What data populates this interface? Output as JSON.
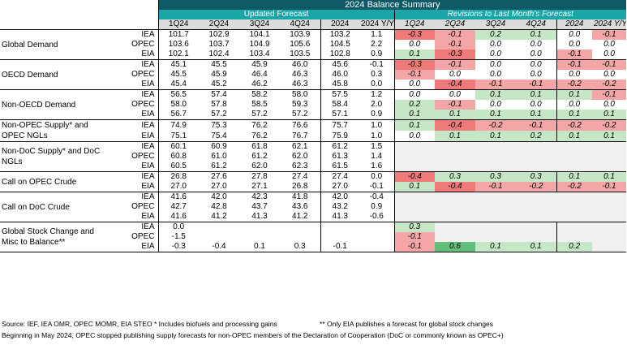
{
  "title": "2024 Balance Summary",
  "sections": {
    "updated": "Updated Forecast",
    "revisions": "Revisions to Last Month's Forecast"
  },
  "columns": [
    "1Q24",
    "2Q24",
    "3Q24",
    "4Q24",
    "2024",
    "2024 Y/Y"
  ],
  "colors": {
    "positive": "#c6e7c6",
    "positive_strong": "#63be7b",
    "negative": "#f4a6a6",
    "negative_strong": "#f07a7a",
    "header_dark": "#0e5965",
    "header_teal": "#1aa6a6",
    "blank": "#f0f0f0"
  },
  "groups": [
    {
      "label": "Global Demand",
      "rows": [
        {
          "src": "IEA",
          "vals": [
            "101.7",
            "102.9",
            "104.1",
            "103.9",
            "103.2",
            "1.1"
          ],
          "rev": [
            "-0.3",
            "-0.1",
            "0.2",
            "0.1",
            "0.0",
            "-0.1"
          ]
        },
        {
          "src": "OPEC",
          "vals": [
            "103.6",
            "103.7",
            "104.9",
            "105.6",
            "104.5",
            "2.2"
          ],
          "rev": [
            "0.0",
            "-0.1",
            "0.0",
            "0.0",
            "0.0",
            "0.0"
          ]
        },
        {
          "src": "EIA",
          "vals": [
            "102.1",
            "102.4",
            "103.4",
            "103.5",
            "102.8",
            "0.9"
          ],
          "rev": [
            "0.1",
            "-0.3",
            "0.0",
            "0.0",
            "-0.1",
            "0.0"
          ]
        }
      ]
    },
    {
      "label": "OECD Demand",
      "rows": [
        {
          "src": "IEA",
          "vals": [
            "45.1",
            "45.5",
            "45.9",
            "46.0",
            "45.6",
            "-0.1"
          ],
          "rev": [
            "-0.3",
            "-0.1",
            "0.0",
            "0.0",
            "-0.1",
            "-0.1"
          ]
        },
        {
          "src": "OPEC",
          "vals": [
            "45.5",
            "45.9",
            "46.4",
            "46.3",
            "46.0",
            "0.3"
          ],
          "rev": [
            "-0.1",
            "0.0",
            "0.0",
            "0.0",
            "0.0",
            "0.0"
          ]
        },
        {
          "src": "EIA",
          "vals": [
            "45.4",
            "45.2",
            "46.2",
            "46.3",
            "45.8",
            "0.0"
          ],
          "rev": [
            "0.0",
            "-0.4",
            "-0.1",
            "-0.1",
            "-0.2",
            "-0.2"
          ]
        }
      ]
    },
    {
      "label": "Non-OECD Demand",
      "rows": [
        {
          "src": "IEA",
          "vals": [
            "56.5",
            "57.4",
            "58.2",
            "58.0",
            "57.5",
            "1.2"
          ],
          "rev": [
            "0.0",
            "0.0",
            "0.1",
            "0.1",
            "0.1",
            "-0.1"
          ]
        },
        {
          "src": "OPEC",
          "vals": [
            "58.0",
            "57.8",
            "58.5",
            "59.3",
            "58.4",
            "2.0"
          ],
          "rev": [
            "0.2",
            "-0.1",
            "0.0",
            "0.0",
            "0.0",
            "0.0"
          ]
        },
        {
          "src": "EIA",
          "vals": [
            "56.7",
            "57.2",
            "57.2",
            "57.2",
            "57.1",
            "0.9"
          ],
          "rev": [
            "0.1",
            "0.1",
            "0.1",
            "0.1",
            "0.1",
            "0.1"
          ]
        }
      ]
    },
    {
      "label": "Non-OPEC Supply* and OPEC NGLs",
      "rows": [
        {
          "src": "IEA",
          "vals": [
            "74.9",
            "75.3",
            "76.2",
            "76.6",
            "75.7",
            "1.0"
          ],
          "rev": [
            "0.1",
            "-0.4",
            "-0.2",
            "-0.1",
            "-0.2",
            "-0.2"
          ]
        },
        {
          "src": "EIA",
          "vals": [
            "75.1",
            "75.4",
            "76.2",
            "76.7",
            "75.9",
            "1.0"
          ],
          "rev": [
            "0.0",
            "0.1",
            "0.1",
            "0.2",
            "0.1",
            "0.1"
          ]
        }
      ]
    },
    {
      "label": "Non-DoC Supply* and DoC NGLs",
      "rows": [
        {
          "src": "IEA",
          "vals": [
            "60.1",
            "60.9",
            "61.8",
            "62.1",
            "61.2",
            "1.5"
          ],
          "rev": null
        },
        {
          "src": "OPEC",
          "vals": [
            "60.8",
            "61.0",
            "61.2",
            "62.0",
            "61.3",
            "1.4"
          ],
          "rev": null
        },
        {
          "src": "EIA",
          "vals": [
            "60.5",
            "61.2",
            "62.0",
            "62.3",
            "61.5",
            "1.6"
          ],
          "rev": null
        }
      ]
    },
    {
      "label": "Call on OPEC Crude",
      "rows": [
        {
          "src": "IEA",
          "vals": [
            "26.8",
            "27.6",
            "27.8",
            "27.4",
            "27.4",
            "0.0"
          ],
          "rev": [
            "-0.4",
            "0.3",
            "0.3",
            "0.3",
            "0.1",
            "0.1"
          ]
        },
        {
          "src": "EIA",
          "vals": [
            "27.0",
            "27.0",
            "27.1",
            "26.8",
            "27.0",
            "-0.1"
          ],
          "rev": [
            "0.1",
            "-0.4",
            "-0.1",
            "-0.2",
            "-0.2",
            "-0.1"
          ]
        }
      ]
    },
    {
      "label": "Call on DoC Crude",
      "rows": [
        {
          "src": "IEA",
          "vals": [
            "41.6",
            "42.0",
            "42.3",
            "41.8",
            "42.0",
            "-0.4"
          ],
          "rev": null
        },
        {
          "src": "OPEC",
          "vals": [
            "42.7",
            "42.8",
            "43.7",
            "43.6",
            "43.2",
            "0.9"
          ],
          "rev": null
        },
        {
          "src": "EIA",
          "vals": [
            "41.6",
            "41.2",
            "41.3",
            "41.2",
            "41.3",
            "-0.6"
          ],
          "rev": null
        }
      ]
    },
    {
      "label": "Global Stock Change and Misc to Balance**",
      "rows": [
        {
          "src": "IEA",
          "vals": [
            "0.0",
            "",
            "",
            "",
            "",
            ""
          ],
          "rev": [
            "0.3",
            "",
            "",
            "",
            "",
            ""
          ]
        },
        {
          "src": "OPEC",
          "vals": [
            "-1.5",
            "",
            "",
            "",
            "",
            ""
          ],
          "rev": [
            "-0.1",
            "",
            "",
            "",
            "",
            ""
          ]
        },
        {
          "src": "EIA",
          "vals": [
            "-0.3",
            "-0.4",
            "0.1",
            "0.3",
            "-0.1",
            ""
          ],
          "rev": [
            "-0.1",
            "0.6",
            "0.1",
            "0.1",
            "0.2",
            ""
          ]
        }
      ]
    }
  ],
  "footnotes": {
    "sources": "Source: IEF, IEA OMR, OPEC MOMR, EIA STEO   * Includes biofuels and processing gains",
    "eia_only": "** Only EIA publishes a forecast for global stock changes",
    "line2": "Beginning in May 2024, OPEC stopped publishing supply forecasts for non-OPEC members of the Declaration of Cooperation (DoC or commonly known as OPEC+)"
  }
}
